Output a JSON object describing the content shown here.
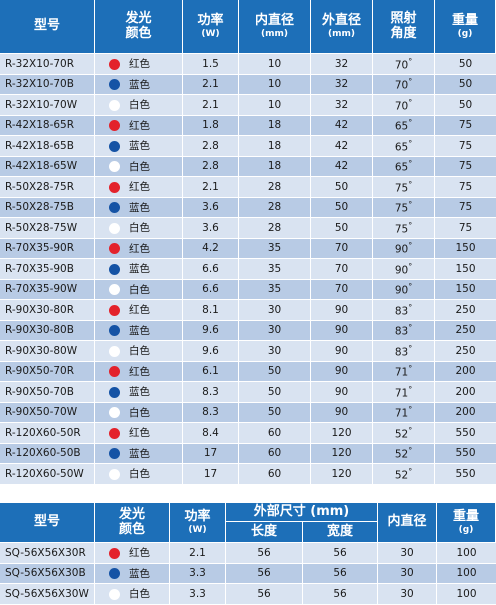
{
  "colors": {
    "header_bg": "#1d6fb8",
    "row_light": "#d9e3f1",
    "row_dark": "#b8cbe5",
    "red": "#e3222b",
    "blue": "#1553a5",
    "white": "#ffffff"
  },
  "table1": {
    "headers": [
      {
        "l1": "型号",
        "l2": ""
      },
      {
        "l1": "发光",
        "l2": "颜色"
      },
      {
        "l1": "功率",
        "l2": "(W)"
      },
      {
        "l1": "内直径",
        "l2": "(mm)"
      },
      {
        "l1": "外直径",
        "l2": "(mm)"
      },
      {
        "l1": "照射",
        "l2": "角度"
      },
      {
        "l1": "重量",
        "l2": "(g)"
      }
    ],
    "rows": [
      {
        "model": "R-32X10-70R",
        "dot": "red",
        "color": "红色",
        "power": "1.5",
        "inner": "10",
        "outer": "32",
        "angle": "70",
        "weight": "50"
      },
      {
        "model": "R-32X10-70B",
        "dot": "blue",
        "color": "蓝色",
        "power": "2.1",
        "inner": "10",
        "outer": "32",
        "angle": "70",
        "weight": "50"
      },
      {
        "model": "R-32X10-70W",
        "dot": "white",
        "color": "白色",
        "power": "2.1",
        "inner": "10",
        "outer": "32",
        "angle": "70",
        "weight": "50"
      },
      {
        "model": "R-42X18-65R",
        "dot": "red",
        "color": "红色",
        "power": "1.8",
        "inner": "18",
        "outer": "42",
        "angle": "65",
        "weight": "75"
      },
      {
        "model": "R-42X18-65B",
        "dot": "blue",
        "color": "蓝色",
        "power": "2.8",
        "inner": "18",
        "outer": "42",
        "angle": "65",
        "weight": "75"
      },
      {
        "model": "R-42X18-65W",
        "dot": "white",
        "color": "白色",
        "power": "2.8",
        "inner": "18",
        "outer": "42",
        "angle": "65",
        "weight": "75"
      },
      {
        "model": "R-50X28-75R",
        "dot": "red",
        "color": "红色",
        "power": "2.1",
        "inner": "28",
        "outer": "50",
        "angle": "75",
        "weight": "75"
      },
      {
        "model": "R-50X28-75B",
        "dot": "blue",
        "color": "蓝色",
        "power": "3.6",
        "inner": "28",
        "outer": "50",
        "angle": "75",
        "weight": "75"
      },
      {
        "model": "R-50X28-75W",
        "dot": "white",
        "color": "白色",
        "power": "3.6",
        "inner": "28",
        "outer": "50",
        "angle": "75",
        "weight": "75"
      },
      {
        "model": "R-70X35-90R",
        "dot": "red",
        "color": "红色",
        "power": "4.2",
        "inner": "35",
        "outer": "70",
        "angle": "90",
        "weight": "150"
      },
      {
        "model": "R-70X35-90B",
        "dot": "blue",
        "color": "蓝色",
        "power": "6.6",
        "inner": "35",
        "outer": "70",
        "angle": "90",
        "weight": "150"
      },
      {
        "model": "R-70X35-90W",
        "dot": "white",
        "color": "白色",
        "power": "6.6",
        "inner": "35",
        "outer": "70",
        "angle": "90",
        "weight": "150"
      },
      {
        "model": "R-90X30-80R",
        "dot": "red",
        "color": "红色",
        "power": "8.1",
        "inner": "30",
        "outer": "90",
        "angle": "83",
        "weight": "250"
      },
      {
        "model": "R-90X30-80B",
        "dot": "blue",
        "color": "蓝色",
        "power": "9.6",
        "inner": "30",
        "outer": "90",
        "angle": "83",
        "weight": "250"
      },
      {
        "model": "R-90X30-80W",
        "dot": "white",
        "color": "白色",
        "power": "9.6",
        "inner": "30",
        "outer": "90",
        "angle": "83",
        "weight": "250"
      },
      {
        "model": "R-90X50-70R",
        "dot": "red",
        "color": "红色",
        "power": "6.1",
        "inner": "50",
        "outer": "90",
        "angle": "71",
        "weight": "200"
      },
      {
        "model": "R-90X50-70B",
        "dot": "blue",
        "color": "蓝色",
        "power": "8.3",
        "inner": "50",
        "outer": "90",
        "angle": "71",
        "weight": "200"
      },
      {
        "model": "R-90X50-70W",
        "dot": "white",
        "color": "白色",
        "power": "8.3",
        "inner": "50",
        "outer": "90",
        "angle": "71",
        "weight": "200"
      },
      {
        "model": "R-120X60-50R",
        "dot": "red",
        "color": "红色",
        "power": "8.4",
        "inner": "60",
        "outer": "120",
        "angle": "52",
        "weight": "550"
      },
      {
        "model": "R-120X60-50B",
        "dot": "blue",
        "color": "蓝色",
        "power": "17",
        "inner": "60",
        "outer": "120",
        "angle": "52",
        "weight": "550"
      },
      {
        "model": "R-120X60-50W",
        "dot": "white",
        "color": "白色",
        "power": "17",
        "inner": "60",
        "outer": "120",
        "angle": "52",
        "weight": "550"
      }
    ]
  },
  "table2": {
    "headers": {
      "model": "型号",
      "color_l1": "发光",
      "color_l2": "颜色",
      "power_l1": "功率",
      "power_l2": "(W)",
      "size": "外部尺寸 (mm)",
      "length": "长度",
      "width": "宽度",
      "inner": "内直径",
      "weight_l1": "重量",
      "weight_l2": "(g)"
    },
    "rows": [
      {
        "model": "SQ-56X56X30R",
        "dot": "red",
        "color": "红色",
        "power": "2.1",
        "length": "56",
        "width": "56",
        "inner": "30",
        "weight": "100"
      },
      {
        "model": "SQ-56X56X30B",
        "dot": "blue",
        "color": "蓝色",
        "power": "3.3",
        "length": "56",
        "width": "56",
        "inner": "30",
        "weight": "100"
      },
      {
        "model": "SQ-56X56X30W",
        "dot": "white",
        "color": "白色",
        "power": "3.3",
        "length": "56",
        "width": "56",
        "inner": "30",
        "weight": "100"
      }
    ]
  }
}
